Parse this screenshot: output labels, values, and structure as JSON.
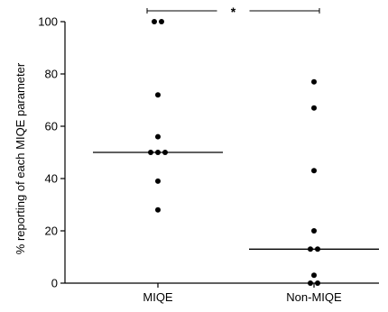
{
  "chart_data": {
    "type": "scatter",
    "title": "",
    "xlabel": "",
    "ylabel": "% reporting of each MIQE parameter",
    "ylim": [
      0,
      100
    ],
    "yticks": [
      0,
      20,
      40,
      60,
      80,
      100
    ],
    "grid": false,
    "categories": [
      "MIQE",
      "Non-MIQE"
    ],
    "series": [
      {
        "category": "MIQE",
        "values": [
          100,
          100,
          72,
          56,
          50,
          50,
          50,
          39,
          28
        ],
        "median": 50
      },
      {
        "category": "Non-MIQE",
        "values": [
          77,
          67,
          43,
          20,
          13,
          13,
          3,
          0,
          0
        ],
        "median": 13
      }
    ],
    "significance": {
      "between": [
        "MIQE",
        "Non-MIQE"
      ],
      "label": "*"
    }
  },
  "colors": {
    "points": "#000000",
    "axes": "#000000",
    "median_line": "#000000"
  }
}
